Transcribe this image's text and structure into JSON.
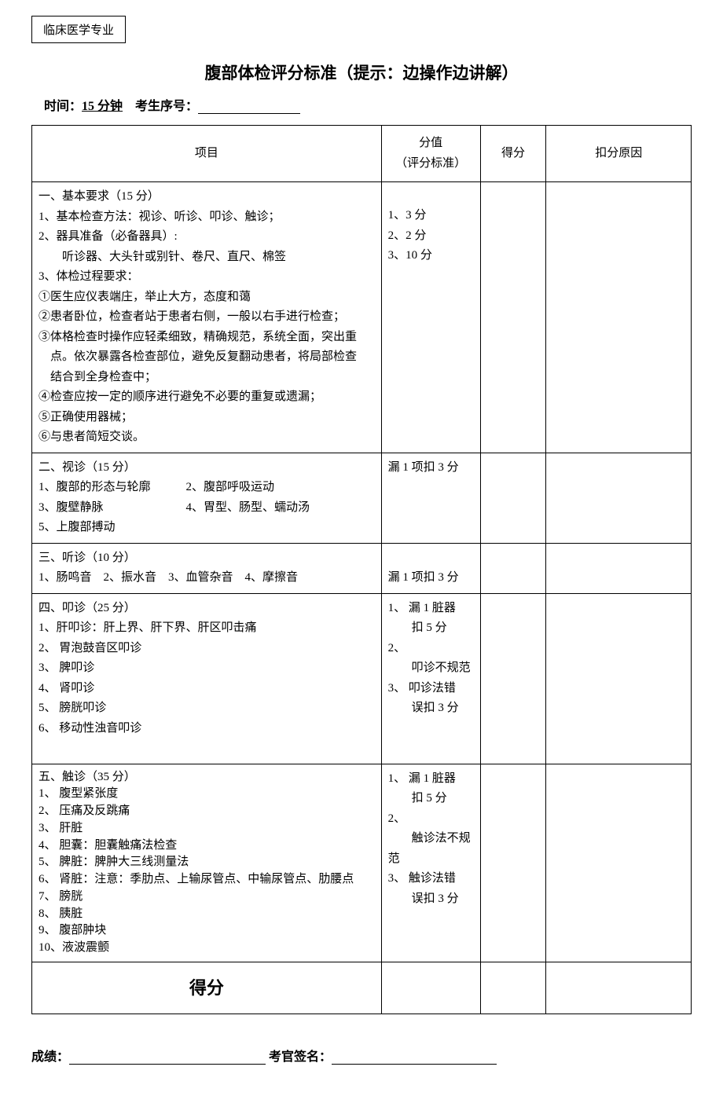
{
  "badge": "临床医学专业",
  "title": "腹部体检评分标准（提示：边操作边讲解）",
  "info": {
    "time_label": "时间：",
    "time_value": "15 分钟",
    "id_label": "考生序号："
  },
  "headers": {
    "item": "项目",
    "score_std": "分值\n（评分标准）",
    "score": "得分",
    "reason": "扣分原因"
  },
  "sections": [
    {
      "lines": [
        "一、基本要求（15 分）",
        "1、基本检查方法：视诊、听诊、叩诊、触诊；",
        "2、器具准备（必备器具）:",
        "　　听诊器、大头针或别针、卷尺、直尺、棉签",
        "3、体检过程要求：",
        "①医生应仪表端庄，举止大方，态度和蔼",
        "②患者卧位，检查者站于患者右侧，一般以右手进行检查；",
        "③体格检查时操作应轻柔细致，精确规范，系统全面，突出重",
        "　点。依次暴露各检查部位，避免反复翻动患者，将局部检查",
        "　结合到全身检查中；",
        "④检查应按一定的顺序进行避免不必要的重复或遗漏；",
        "⑤正确使用器械；",
        "⑥与患者简短交谈。"
      ],
      "criteria": [
        "1、3 分",
        "2、2 分",
        "3、10 分"
      ]
    },
    {
      "lines": [
        "二、视诊（15 分）",
        "1、腹部的形态与轮廓　　　2、腹部呼吸运动",
        "3、腹壁静脉　　　　　　　4、胃型、肠型、蠕动汤",
        "5、上腹部搏动"
      ],
      "criteria": [
        "漏 1 项扣 3 分"
      ]
    },
    {
      "lines": [
        "三、听诊（10 分）",
        "1、肠鸣音　2、振水音　3、血管杂音　4、摩擦音"
      ],
      "criteria": [
        "",
        "漏 1 项扣 3 分"
      ]
    },
    {
      "lines": [
        "四、叩诊（25 分）",
        "1、肝叩诊：肝上界、肝下界、肝区叩击痛",
        "2、 胃泡鼓音区叩诊",
        "3、 脾叩诊",
        "4、 肾叩诊",
        "5、 膀胱叩诊",
        "6、 移动性浊音叩诊",
        ""
      ],
      "criteria": [
        "1、 漏 1 脏器",
        "　　扣 5 分",
        "2、",
        "　　叩诊不规范",
        "3、 叩诊法错",
        "　　误扣 3 分"
      ]
    },
    {
      "lines": [
        "五、触诊（35 分）",
        "1、 腹型紧张度",
        "2、 压痛及反跳痛",
        "3、 肝脏",
        "4、 胆囊：胆囊触痛法检查",
        "5、 脾脏：脾肿大三线测量法",
        "6、 肾脏：注意：季肋点、上输尿管点、中输尿管点、肋腰点",
        "7、 膀胱",
        "8、 胰脏",
        "9、 腹部肿块",
        "10、液波震颤"
      ],
      "criteria": [
        "1、 漏 1 脏器",
        "　　扣 5 分",
        "2、",
        "　　触诊法不规范",
        "3、 触诊法错",
        "　　误扣 3 分"
      ]
    }
  ],
  "final_label": "得分",
  "footer": {
    "result_label": "成绩：",
    "sign_label": "考官签名："
  },
  "style": {
    "section5_line_height": "1.45"
  }
}
